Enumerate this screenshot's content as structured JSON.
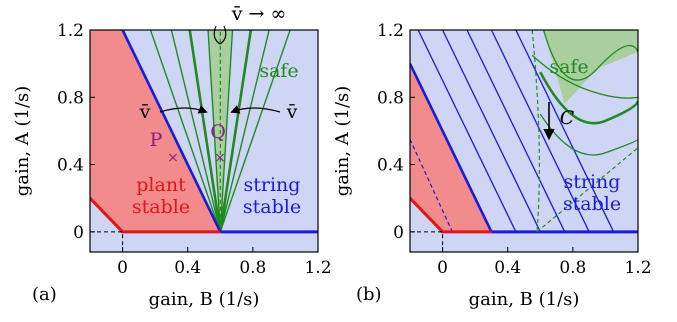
{
  "figure": {
    "left_panel_tag": "(a)",
    "right_panel_tag": "(b)"
  },
  "axes": {
    "xlabel": "gain, B (1/s)",
    "ylabel": "gain, A (1/s)"
  },
  "ticks": {
    "x": [
      {
        "v": 0,
        "t": "0"
      },
      {
        "v": 0.4,
        "t": "0.4"
      },
      {
        "v": 0.8,
        "t": "0.8"
      },
      {
        "v": 1.2,
        "t": "1.2"
      }
    ],
    "y": [
      {
        "v": 0,
        "t": "0"
      },
      {
        "v": 0.4,
        "t": "0.4"
      },
      {
        "v": 0.8,
        "t": "0.8"
      },
      {
        "v": 1.2,
        "t": "1.2"
      }
    ]
  },
  "colors": {
    "plant": "#f28b8b",
    "string": "#cfd6f5",
    "safe": "#a9cf9f",
    "red": "#e0161b",
    "blue": "#1b1bd6",
    "green": "#1f8a1f",
    "purple": "#8b1a8b"
  },
  "panel_a": {
    "labels": {
      "plant_1": "plant",
      "plant_2": "stable",
      "string_1": "string",
      "string_2": "stable",
      "safe": "safe",
      "vbar_left": "v̄",
      "vbar_right": "v̄",
      "vinf": "v̄ → ∞",
      "point_p": "P",
      "point_q": "Q"
    },
    "points": [
      {
        "name": "P",
        "B": 0.3,
        "A": 0.42
      },
      {
        "name": "Q",
        "B": 0.6,
        "A": 0.42
      }
    ]
  },
  "panel_b": {
    "labels": {
      "safe": "safe",
      "string_1": "string",
      "string_2": "stable",
      "arrow": "C"
    }
  },
  "chart_data": [
    {
      "type": "area",
      "panel": "(a)",
      "xlim": [
        -0.2,
        1.2
      ],
      "ylim": [
        -0.12,
        1.2
      ],
      "regions": [
        "plant stable",
        "string stable",
        "safe"
      ],
      "plant_stability_boundary": {
        "x": [
          -0.2,
          0,
          0.6,
          1.2
        ],
        "y": [
          0.2,
          0,
          0,
          0
        ]
      },
      "string_stability_boundary": {
        "x": [
          -0.2,
          0.6
        ],
        "y": [
          1.6,
          0
        ]
      },
      "safe_curves_vertex": {
        "x": 0.6,
        "y": 0
      },
      "safe_curve_slopes_left": [
        -16,
        -6.4,
        -4,
        -2.8
      ],
      "safe_curve_slopes_right": [
        16,
        6.4,
        4,
        2.8
      ],
      "vinf_line_x": 0.6,
      "points": [
        {
          "label": "P",
          "x": 0.3,
          "y": 0.42
        },
        {
          "label": "Q",
          "x": 0.6,
          "y": 0.42
        }
      ]
    },
    {
      "type": "area",
      "panel": "(b)",
      "xlim": [
        -0.2,
        1.2
      ],
      "ylim": [
        -0.12,
        1.2
      ],
      "regions": [
        "string stable",
        "safe"
      ],
      "string_stability_lines_x0": [
        0.3,
        0.45,
        0.6,
        0.75,
        0.9,
        1.05
      ],
      "boundary_line": {
        "x": [
          -0.2,
          0.3
        ],
        "y": [
          1.0,
          0
        ]
      },
      "safe_curves": [
        {
          "x": [
            0.55,
            0.72,
            0.9,
            1.2
          ],
          "y": [
            1.05,
            0.9,
            0.84,
            0.8
          ]
        },
        {
          "x": [
            0.62,
            0.75,
            0.95,
            1.2
          ],
          "y": [
            1.2,
            0.76,
            0.97,
            1.07
          ]
        },
        {
          "x": [
            0.6,
            0.8,
            1.0,
            1.2
          ],
          "y": [
            0.95,
            0.58,
            0.66,
            0.78
          ]
        },
        {
          "x": [
            0.6,
            0.8,
            1.0,
            1.2
          ],
          "y": [
            0.7,
            0.4,
            0.47,
            0.55
          ]
        }
      ],
      "dashed_green": {
        "x": [
          0.58,
          1.2
        ],
        "y": [
          0,
          0.5
        ]
      }
    }
  ]
}
